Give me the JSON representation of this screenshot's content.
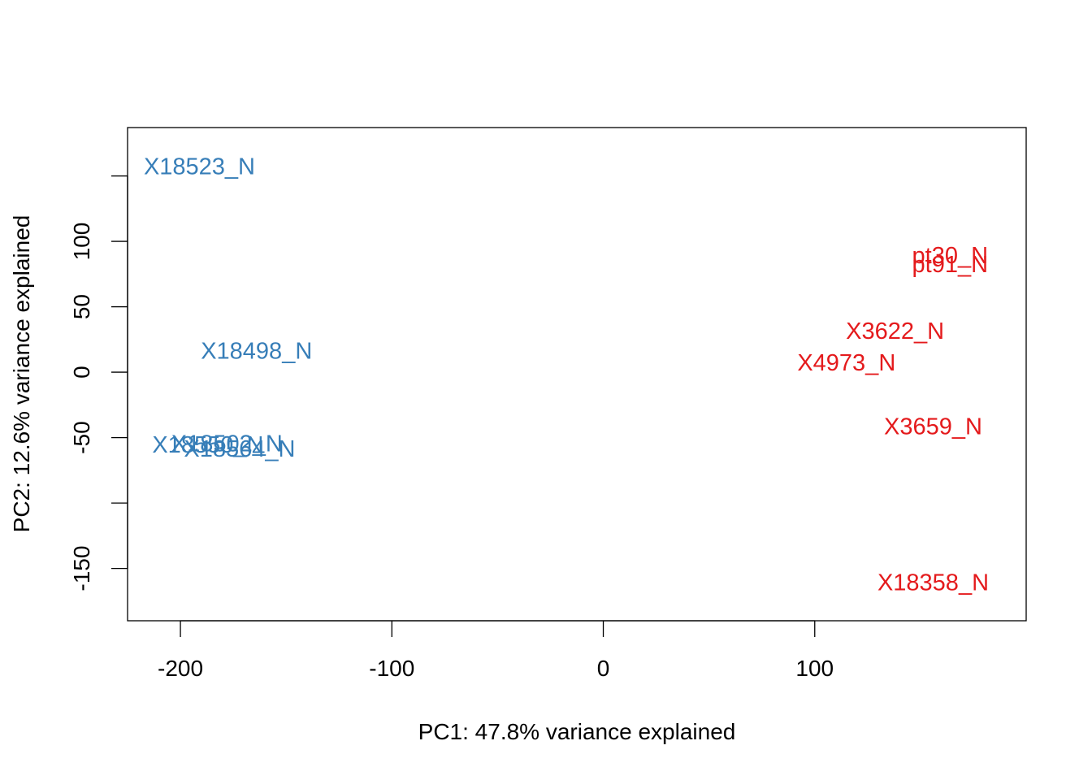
{
  "chart_data": {
    "type": "scatter",
    "title": "",
    "xlabel": "PC1: 47.8% variance explained",
    "ylabel": "PC2: 12.6% variance explained",
    "xlim": [
      -225,
      200
    ],
    "ylim": [
      -190,
      187
    ],
    "x_ticks": [
      -200,
      -100,
      0,
      100
    ],
    "y_ticks": [
      -150,
      -100,
      -50,
      0,
      50,
      100,
      150
    ],
    "y_tick_labels": [
      "-150",
      "",
      "-50",
      "0",
      "50",
      "100",
      ""
    ],
    "grid": false,
    "legend": "none",
    "marker": "text-label",
    "series": [
      {
        "color": "#377EB8",
        "points": [
          {
            "label": "X18523_N",
            "x": -191,
            "y": 157
          },
          {
            "label": "X18498_N",
            "x": -164,
            "y": 16
          },
          {
            "label": "X18550_N",
            "x": -187,
            "y": -56
          },
          {
            "label": "X18502_N",
            "x": -178,
            "y": -55
          },
          {
            "label": "X18564_N",
            "x": -172,
            "y": -59
          }
        ]
      },
      {
        "color": "#E41A1C",
        "points": [
          {
            "label": "pt30_N",
            "x": 164,
            "y": 89
          },
          {
            "label": "pt91_N",
            "x": 164,
            "y": 82
          },
          {
            "label": "X3622_N",
            "x": 138,
            "y": 31
          },
          {
            "label": "X4973_N",
            "x": 115,
            "y": 7
          },
          {
            "label": "X3659_N",
            "x": 156,
            "y": -42
          },
          {
            "label": "X18358_N",
            "x": 156,
            "y": -161
          }
        ]
      }
    ]
  }
}
